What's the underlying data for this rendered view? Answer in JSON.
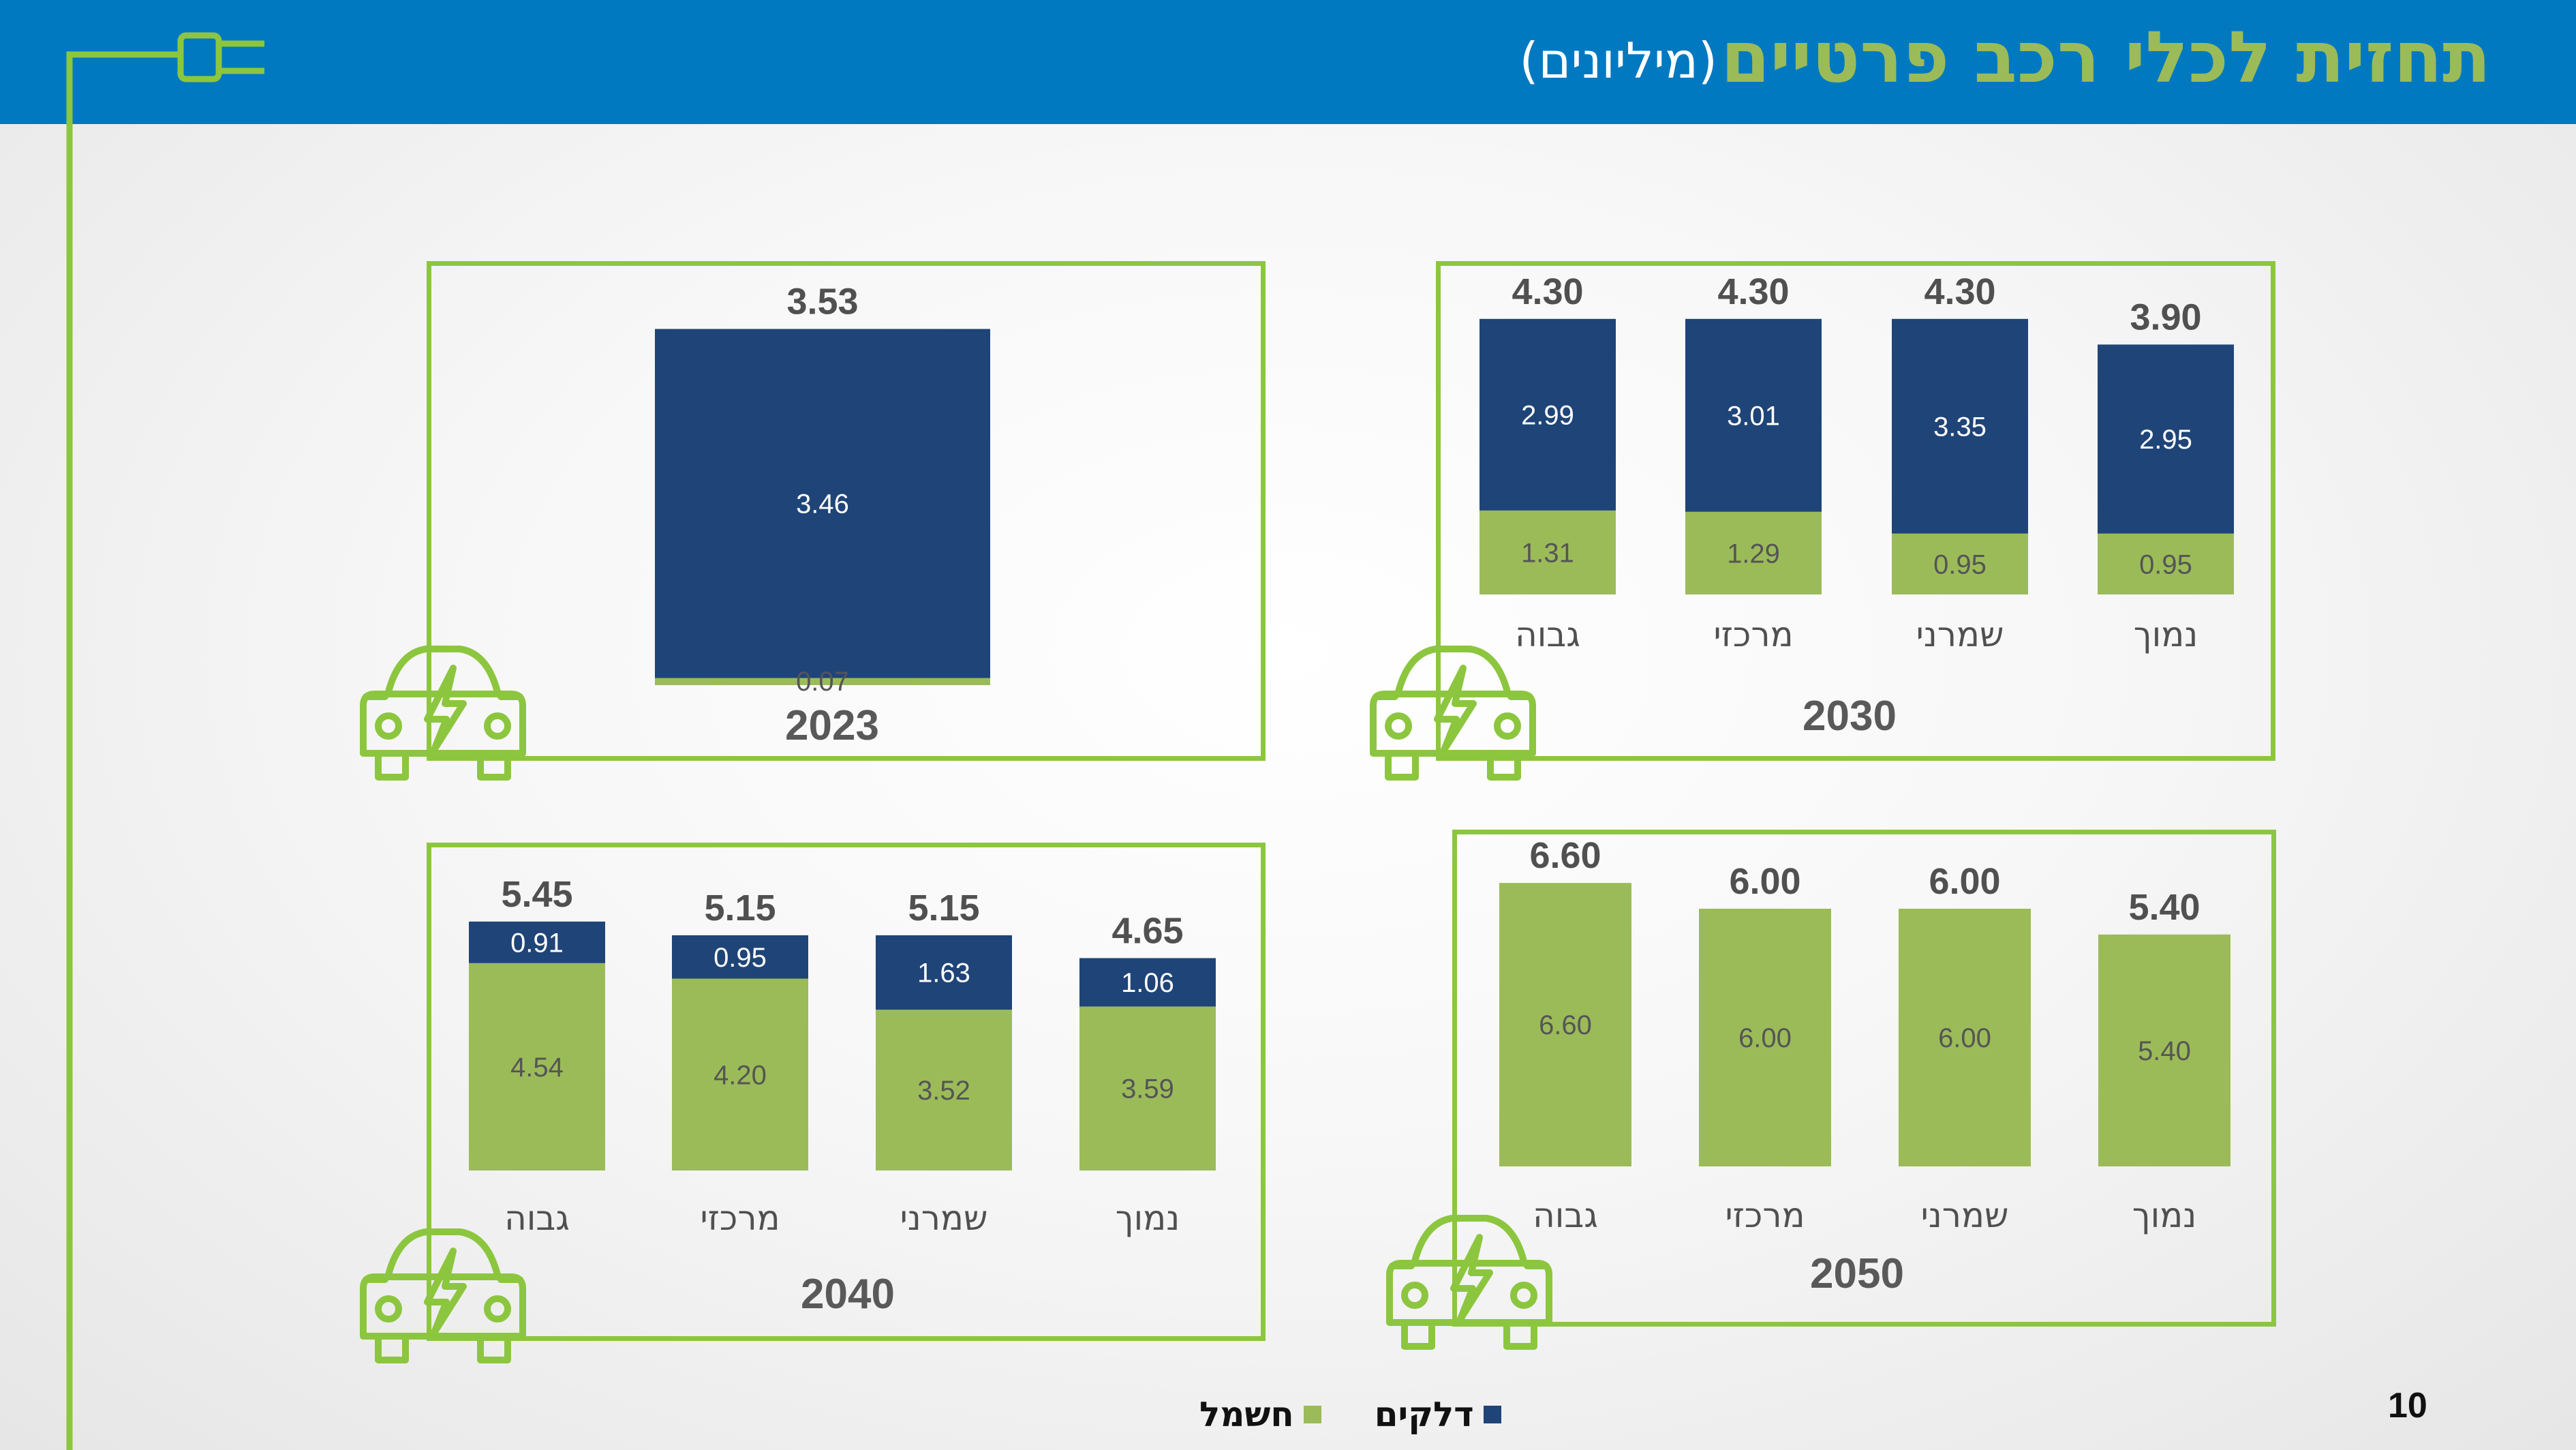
{
  "header": {
    "title": "תחזית לכלי רכב פרטיים",
    "subtitle": "(מיליונים)"
  },
  "legend": {
    "fuel_label": "דלקים",
    "electric_label": "חשמל"
  },
  "page_number": "10",
  "colors": {
    "header_bg": "#0079c1",
    "title": "#9bbb59",
    "fuel": "#1f4477",
    "electric": "#9bbb59",
    "frame": "#8cc63f",
    "total_label": "#505050"
  },
  "icons": [
    "plug-icon",
    "electric-car-icon"
  ],
  "chart_data": [
    {
      "type": "bar",
      "stacked": true,
      "title": "2023",
      "categories": [
        ""
      ],
      "series": [
        {
          "name": "חשמל",
          "values": [
            0.07
          ]
        },
        {
          "name": "דלקים",
          "values": [
            3.46
          ]
        }
      ],
      "totals": [
        3.53
      ],
      "value_labels": {
        "חשמל": [
          "0.07"
        ],
        "דלקים": [
          "3.46"
        ],
        "totals": [
          "3.53"
        ]
      }
    },
    {
      "type": "bar",
      "stacked": true,
      "title": "2030",
      "categories": [
        "גבוה",
        "מרכזי",
        "שמרני",
        "נמוך"
      ],
      "series": [
        {
          "name": "חשמל",
          "values": [
            1.31,
            1.29,
            0.95,
            0.95
          ]
        },
        {
          "name": "דלקים",
          "values": [
            2.99,
            3.01,
            3.35,
            2.95
          ]
        }
      ],
      "totals": [
        4.3,
        4.3,
        4.3,
        3.9
      ],
      "value_labels": {
        "חשמל": [
          "1.31",
          "1.29",
          "0.95",
          "0.95"
        ],
        "דלקים": [
          "2.99",
          "3.01",
          "3.35",
          "2.95"
        ],
        "totals": [
          "4.30",
          "4.30",
          "4.30",
          "3.90"
        ]
      }
    },
    {
      "type": "bar",
      "stacked": true,
      "title": "2040",
      "categories": [
        "גבוה",
        "מרכזי",
        "שמרני",
        "נמוך"
      ],
      "series": [
        {
          "name": "חשמל",
          "values": [
            4.54,
            4.2,
            3.52,
            3.59
          ]
        },
        {
          "name": "דלקים",
          "values": [
            0.91,
            0.95,
            1.63,
            1.06
          ]
        }
      ],
      "totals": [
        5.45,
        5.15,
        5.15,
        4.65
      ],
      "value_labels": {
        "חשמל": [
          "4.54",
          "4.20",
          "3.52",
          "3.59"
        ],
        "דלקים": [
          "0.91",
          "0.95",
          "1.63",
          "1.06"
        ],
        "totals": [
          "5.45",
          "5.15",
          "5.15",
          "4.65"
        ]
      }
    },
    {
      "type": "bar",
      "stacked": true,
      "title": "2050",
      "categories": [
        "גבוה",
        "מרכזי",
        "שמרני",
        "נמוך"
      ],
      "series": [
        {
          "name": "חשמל",
          "values": [
            6.6,
            6.0,
            6.0,
            5.4
          ]
        },
        {
          "name": "דלקים",
          "values": [
            0,
            0,
            0,
            0
          ]
        }
      ],
      "totals": [
        6.6,
        6.0,
        6.0,
        5.4
      ],
      "value_labels": {
        "חשמל": [
          "6.60",
          "6.00",
          "6.00",
          "5.40"
        ],
        "דלקים": [],
        "totals": [
          "6.60",
          "6.00",
          "6.00",
          "5.40"
        ]
      }
    }
  ]
}
